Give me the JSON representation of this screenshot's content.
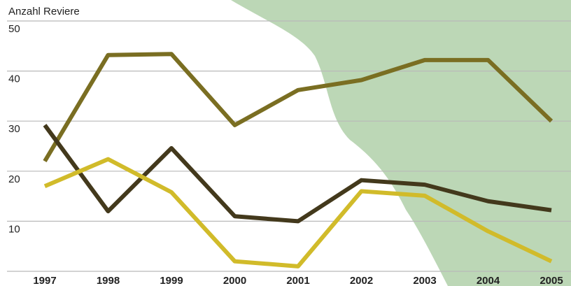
{
  "chart_data": {
    "type": "line",
    "y_label": "Anzahl Reviere",
    "categories": [
      "1997",
      "1998",
      "1999",
      "2000",
      "2001",
      "2002",
      "2003",
      "2004",
      "2005"
    ],
    "series": [
      {
        "color": "#7a6e22",
        "values": [
          22,
          43.2,
          43.4,
          29.2,
          36.2,
          38.2,
          42.2,
          42.2,
          30
        ]
      },
      {
        "color": "#43391c",
        "values": [
          29.2,
          12,
          24.6,
          11,
          10,
          18.2,
          17.3,
          14,
          12.2
        ]
      },
      {
        "color": "#d1bb2a",
        "values": [
          17,
          22.4,
          15.8,
          2,
          1,
          16,
          15.1,
          8,
          2
        ]
      }
    ],
    "ylim": [
      0,
      50
    ],
    "yticks": [
      10,
      20,
      30,
      40,
      50
    ],
    "grid": true
  }
}
